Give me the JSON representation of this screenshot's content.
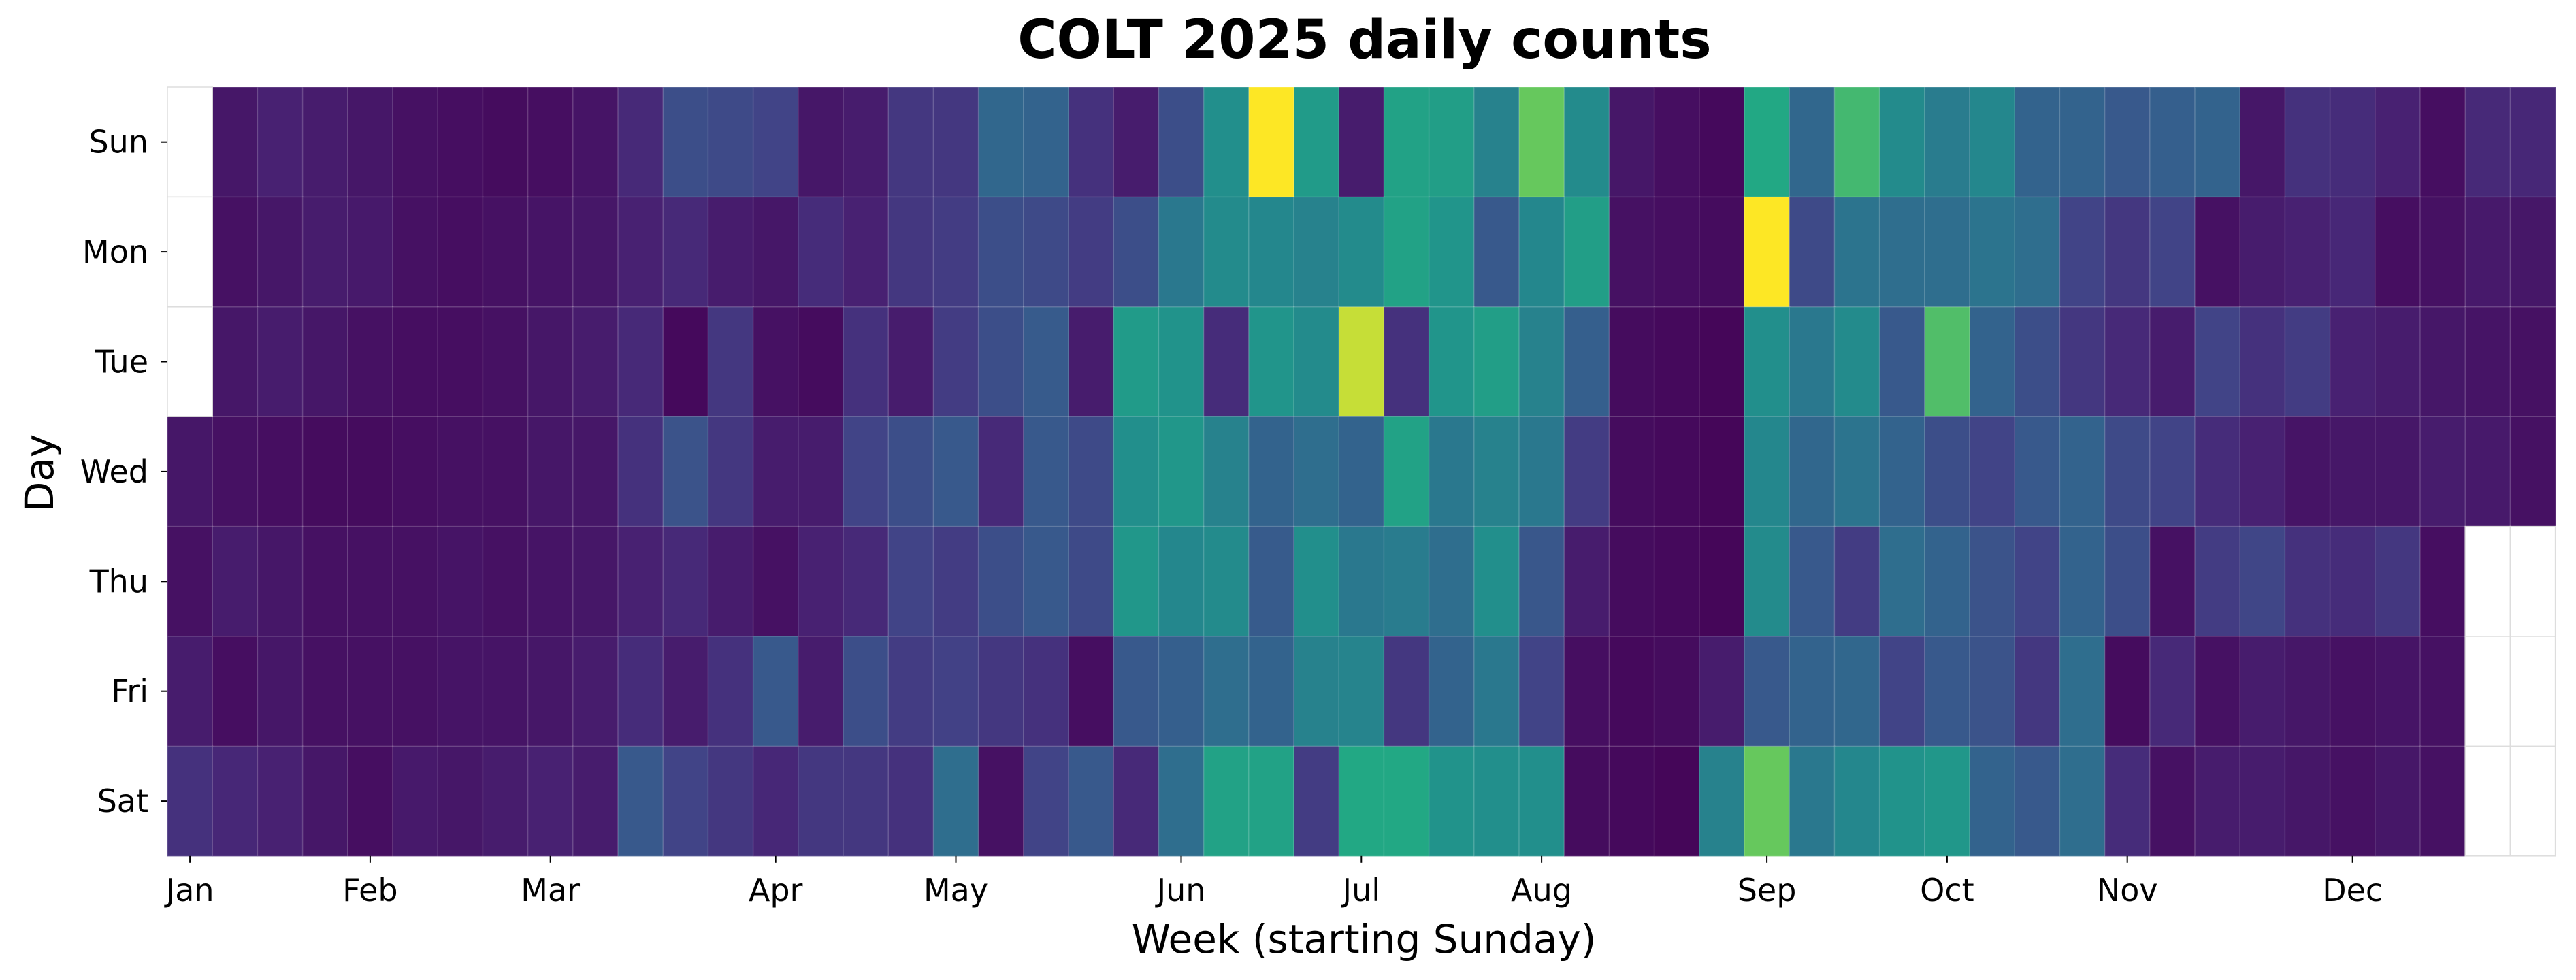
{
  "chart_data": {
    "type": "heatmap",
    "title": "COLT 2025 daily counts",
    "xlabel": "Week (starting Sunday)",
    "ylabel": "Day",
    "x_tick_labels": [
      "Jan",
      "Feb",
      "Mar",
      "Apr",
      "May",
      "Jun",
      "Jul",
      "Aug",
      "Sep",
      "Oct",
      "Nov",
      "Dec"
    ],
    "x_tick_weeks": [
      0,
      4,
      8,
      13,
      17,
      22,
      26,
      30,
      35,
      39,
      43,
      48
    ],
    "y_tick_labels": [
      "Sun",
      "Mon",
      "Tue",
      "Wed",
      "Thu",
      "Fri",
      "Sat"
    ],
    "colormap": "viridis",
    "value_range": [
      0,
      1
    ],
    "grid": false,
    "legend": "none",
    "weeks": 53,
    "first_week_start_row": 3,
    "values": [
      [
        null,
        0.08,
        0.12,
        0.1,
        0.08,
        0.06,
        0.05,
        0.04,
        0.05,
        0.07,
        0.15,
        0.3,
        0.28,
        0.25,
        0.08,
        0.1,
        0.2,
        0.2,
        0.42,
        0.4,
        0.18,
        0.1,
        0.3,
        0.62,
        1.0,
        0.68,
        0.1,
        0.72,
        0.7,
        0.55,
        0.85,
        0.6,
        0.08,
        0.05,
        0.03,
        0.75,
        0.42,
        0.8,
        0.6,
        0.52,
        0.58,
        0.4,
        0.4,
        0.35,
        0.38,
        0.4,
        0.08,
        0.18,
        0.16,
        0.12,
        0.05,
        0.15,
        0.14
      ],
      [
        null,
        0.06,
        0.08,
        0.1,
        0.09,
        0.06,
        0.05,
        0.06,
        0.07,
        0.08,
        0.12,
        0.15,
        0.1,
        0.08,
        0.16,
        0.12,
        0.2,
        0.22,
        0.3,
        0.28,
        0.22,
        0.3,
        0.5,
        0.6,
        0.58,
        0.55,
        0.6,
        0.72,
        0.65,
        0.35,
        0.58,
        0.7,
        0.06,
        0.05,
        0.04,
        1.0,
        0.28,
        0.48,
        0.45,
        0.45,
        0.48,
        0.45,
        0.25,
        0.2,
        0.25,
        0.06,
        0.1,
        0.12,
        0.14,
        0.05,
        0.06,
        0.09,
        0.08
      ],
      [
        null,
        0.08,
        0.1,
        0.08,
        0.06,
        0.05,
        0.05,
        0.06,
        0.08,
        0.1,
        0.15,
        0.03,
        0.2,
        0.06,
        0.04,
        0.18,
        0.1,
        0.22,
        0.3,
        0.36,
        0.1,
        0.68,
        0.64,
        0.16,
        0.65,
        0.6,
        0.95,
        0.18,
        0.65,
        0.7,
        0.55,
        0.38,
        0.04,
        0.03,
        0.02,
        0.62,
        0.5,
        0.6,
        0.35,
        0.82,
        0.4,
        0.3,
        0.2,
        0.15,
        0.1,
        0.25,
        0.18,
        0.22,
        0.12,
        0.1,
        0.08,
        0.07,
        0.06
      ],
      [
        0.08,
        0.06,
        0.05,
        0.04,
        0.04,
        0.05,
        0.06,
        0.06,
        0.08,
        0.08,
        0.18,
        0.32,
        0.2,
        0.1,
        0.1,
        0.25,
        0.3,
        0.35,
        0.15,
        0.35,
        0.28,
        0.62,
        0.66,
        0.55,
        0.4,
        0.45,
        0.4,
        0.72,
        0.5,
        0.55,
        0.5,
        0.22,
        0.04,
        0.03,
        0.02,
        0.58,
        0.42,
        0.48,
        0.4,
        0.3,
        0.25,
        0.35,
        0.4,
        0.28,
        0.25,
        0.16,
        0.12,
        0.07,
        0.08,
        0.08,
        0.1,
        0.09,
        0.06
      ],
      [
        0.06,
        0.1,
        0.08,
        0.06,
        0.06,
        0.06,
        0.07,
        0.06,
        0.07,
        0.08,
        0.12,
        0.15,
        0.1,
        0.06,
        0.12,
        0.15,
        0.25,
        0.22,
        0.3,
        0.35,
        0.28,
        0.66,
        0.58,
        0.6,
        0.36,
        0.62,
        0.5,
        0.52,
        0.45,
        0.62,
        0.34,
        0.1,
        0.04,
        0.03,
        0.02,
        0.6,
        0.35,
        0.22,
        0.45,
        0.4,
        0.32,
        0.25,
        0.4,
        0.3,
        0.06,
        0.22,
        0.26,
        0.18,
        0.16,
        0.2,
        0.05,
        null,
        null
      ],
      [
        0.1,
        0.05,
        0.08,
        0.06,
        0.06,
        0.06,
        0.07,
        0.07,
        0.08,
        0.1,
        0.16,
        0.1,
        0.18,
        0.35,
        0.1,
        0.3,
        0.22,
        0.24,
        0.2,
        0.18,
        0.05,
        0.35,
        0.38,
        0.45,
        0.4,
        0.55,
        0.56,
        0.2,
        0.4,
        0.5,
        0.25,
        0.05,
        0.03,
        0.04,
        0.1,
        0.35,
        0.4,
        0.42,
        0.25,
        0.35,
        0.32,
        0.2,
        0.45,
        0.04,
        0.15,
        0.06,
        0.1,
        0.08,
        0.06,
        0.07,
        0.06,
        null,
        null
      ],
      [
        0.18,
        0.14,
        0.12,
        0.08,
        0.05,
        0.09,
        0.08,
        0.1,
        0.12,
        0.1,
        0.35,
        0.25,
        0.2,
        0.14,
        0.2,
        0.2,
        0.18,
        0.45,
        0.06,
        0.25,
        0.35,
        0.15,
        0.45,
        0.72,
        0.72,
        0.22,
        0.75,
        0.75,
        0.64,
        0.62,
        0.62,
        0.04,
        0.03,
        0.02,
        0.55,
        0.85,
        0.5,
        0.58,
        0.64,
        0.66,
        0.4,
        0.35,
        0.45,
        0.16,
        0.06,
        0.1,
        0.1,
        0.08,
        0.06,
        0.08,
        0.06,
        null,
        null
      ]
    ]
  }
}
